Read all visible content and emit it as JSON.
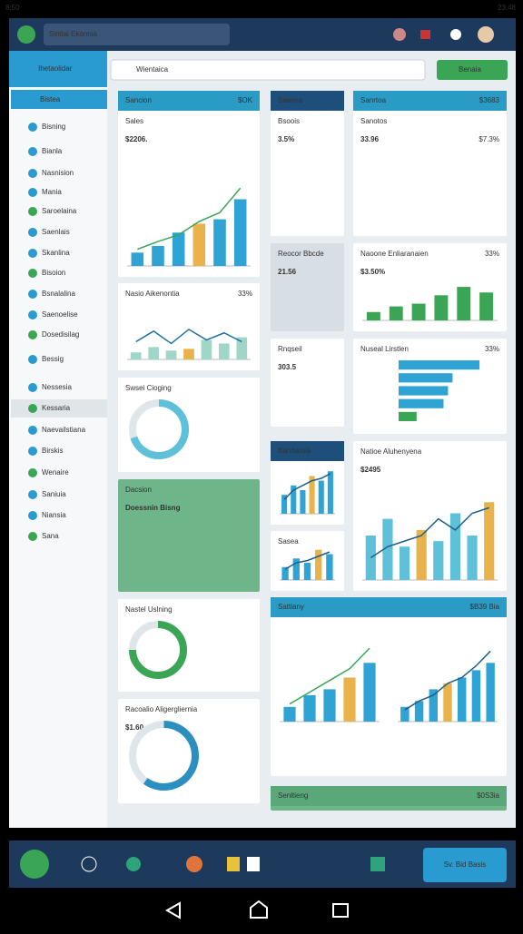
{
  "status_bar": {
    "time": "8:50",
    "clock": "23:48"
  },
  "header": {
    "app_title": "Sintiai Ekonnia"
  },
  "sidebar": {
    "title": "Ihetaolidar",
    "active": "Bistea",
    "items": [
      "Bisning",
      "Bianla",
      "Nasnision",
      "Mania",
      "Saroelaina",
      "Saenlais",
      "Skanlina",
      "Bisoion",
      "Bsnalalina",
      "Saenoelise",
      "Dosedisilag",
      "Bessig",
      "Nessesia",
      "Kessaria",
      "Naevailstiana",
      "Birskis",
      "Wenaire",
      "Saniuia",
      "Niansia",
      "Sana"
    ]
  },
  "search": {
    "placeholder": "Wientaica",
    "button": "Benaia"
  },
  "cards": [
    {
      "header": "Sancion",
      "tag": "$OK",
      "title": "Sales",
      "value": "$2206.",
      "chart": {
        "type": "bar",
        "values": [
          12,
          18,
          30,
          38,
          42,
          60
        ],
        "line": [
          15,
          22,
          28,
          40,
          48,
          70
        ],
        "ylim": [
          0,
          80
        ],
        "color": "#2fa3d4",
        "line_color": "#3aa655"
      }
    },
    {
      "title": "Nasio Aikenontia",
      "tag": "33%",
      "chart": {
        "type": "bar",
        "values": [
          8,
          14,
          10,
          12,
          22,
          18,
          25
        ],
        "line": [
          20,
          32,
          18,
          34,
          22,
          30,
          20
        ],
        "ylim": [
          0,
          40
        ],
        "color": "#9fd6c8",
        "line_color": "#1f6fa5"
      }
    },
    {
      "title": "Swsei Cioging",
      "chart": {
        "type": "donut",
        "value": 70,
        "color": "#5ec0d9"
      }
    },
    {
      "title": "Dacsion",
      "value": "Doessnin Bisng"
    },
    {
      "title": "Nastel Uslning",
      "chart": {
        "type": "donut",
        "value": 75,
        "color": "#3aa655"
      }
    },
    {
      "title": "Racoalio Aligergliernia",
      "value": "$1.60",
      "chart": {
        "type": "donut",
        "value": 60,
        "color": "#2b8fc0"
      }
    },
    {
      "header": "Sawrea",
      "title": "Bsoois",
      "value": "3.5%"
    },
    {
      "title": "Reocor Bbcde",
      "value": "21.56"
    },
    {
      "title": "Rnqseil",
      "value": "303.5"
    },
    {
      "header": "Bandaroia",
      "chart": {
        "type": "bar",
        "values": [
          8,
          12,
          10,
          16,
          14,
          18
        ],
        "line": [
          6,
          10,
          12,
          14,
          15,
          17
        ],
        "ylim": [
          0,
          20
        ],
        "color": "#2fa3d4",
        "line_color": "#1d5f8a"
      }
    },
    {
      "title": "Sasea",
      "chart": {
        "type": "bar",
        "values": [
          6,
          10,
          8,
          14,
          12
        ],
        "line": [
          5,
          8,
          9,
          11,
          13
        ],
        "ylim": [
          0,
          16
        ],
        "color": "#2fa3d4",
        "line_color": "#1d5f8a"
      }
    },
    {
      "header": "Sanrtoa",
      "tag": "$3683",
      "title": "Sanotos",
      "value": "33.96",
      "extra": "$7.3%"
    },
    {
      "title": "Naoone Enliaranaien",
      "tag": "33%",
      "value": "$3.50%",
      "chart": {
        "type": "bar",
        "values": [
          6,
          10,
          12,
          18,
          24,
          20
        ],
        "ylim": [
          0,
          26
        ],
        "color": "#3aa655"
      }
    },
    {
      "title": "Nuseal Lirstlen",
      "tag": "33%",
      "chart": {
        "type": "hbar",
        "values": [
          90,
          60,
          55,
          50,
          20
        ],
        "xlim": [
          0,
          100
        ],
        "color": "#2fa3d4"
      }
    },
    {
      "title": "Natioe Aluhenyena",
      "value": "$2495",
      "chart": {
        "type": "bar",
        "values": [
          40,
          55,
          30,
          45,
          35,
          60,
          40,
          70
        ],
        "line": [
          20,
          30,
          35,
          40,
          55,
          45,
          60,
          65
        ],
        "ylim": [
          0,
          80
        ],
        "color": "#5ec0d9",
        "line_color": "#1d5f8a"
      }
    },
    {
      "header": "Sattiany",
      "tag": "$B39 Bia",
      "chart": {
        "type": "bar",
        "values": [
          10,
          18,
          22,
          30,
          40
        ],
        "line": [
          12,
          20,
          28,
          36,
          50
        ],
        "ylim": [
          0,
          55
        ],
        "color": "#2fa3d4",
        "line_color": "#3aa655"
      },
      "chart2": {
        "type": "bar",
        "values": [
          10,
          14,
          22,
          26,
          30,
          35,
          40
        ],
        "line": [
          8,
          14,
          18,
          26,
          30,
          38,
          48
        ],
        "ylim": [
          0,
          55
        ],
        "color": "#2fa3d4",
        "line_color": "#1d5f8a"
      }
    },
    {
      "header": "Senltieng",
      "tag": "$0S3ia"
    }
  ],
  "dock": {
    "button": "Sv. Bid Basis"
  }
}
